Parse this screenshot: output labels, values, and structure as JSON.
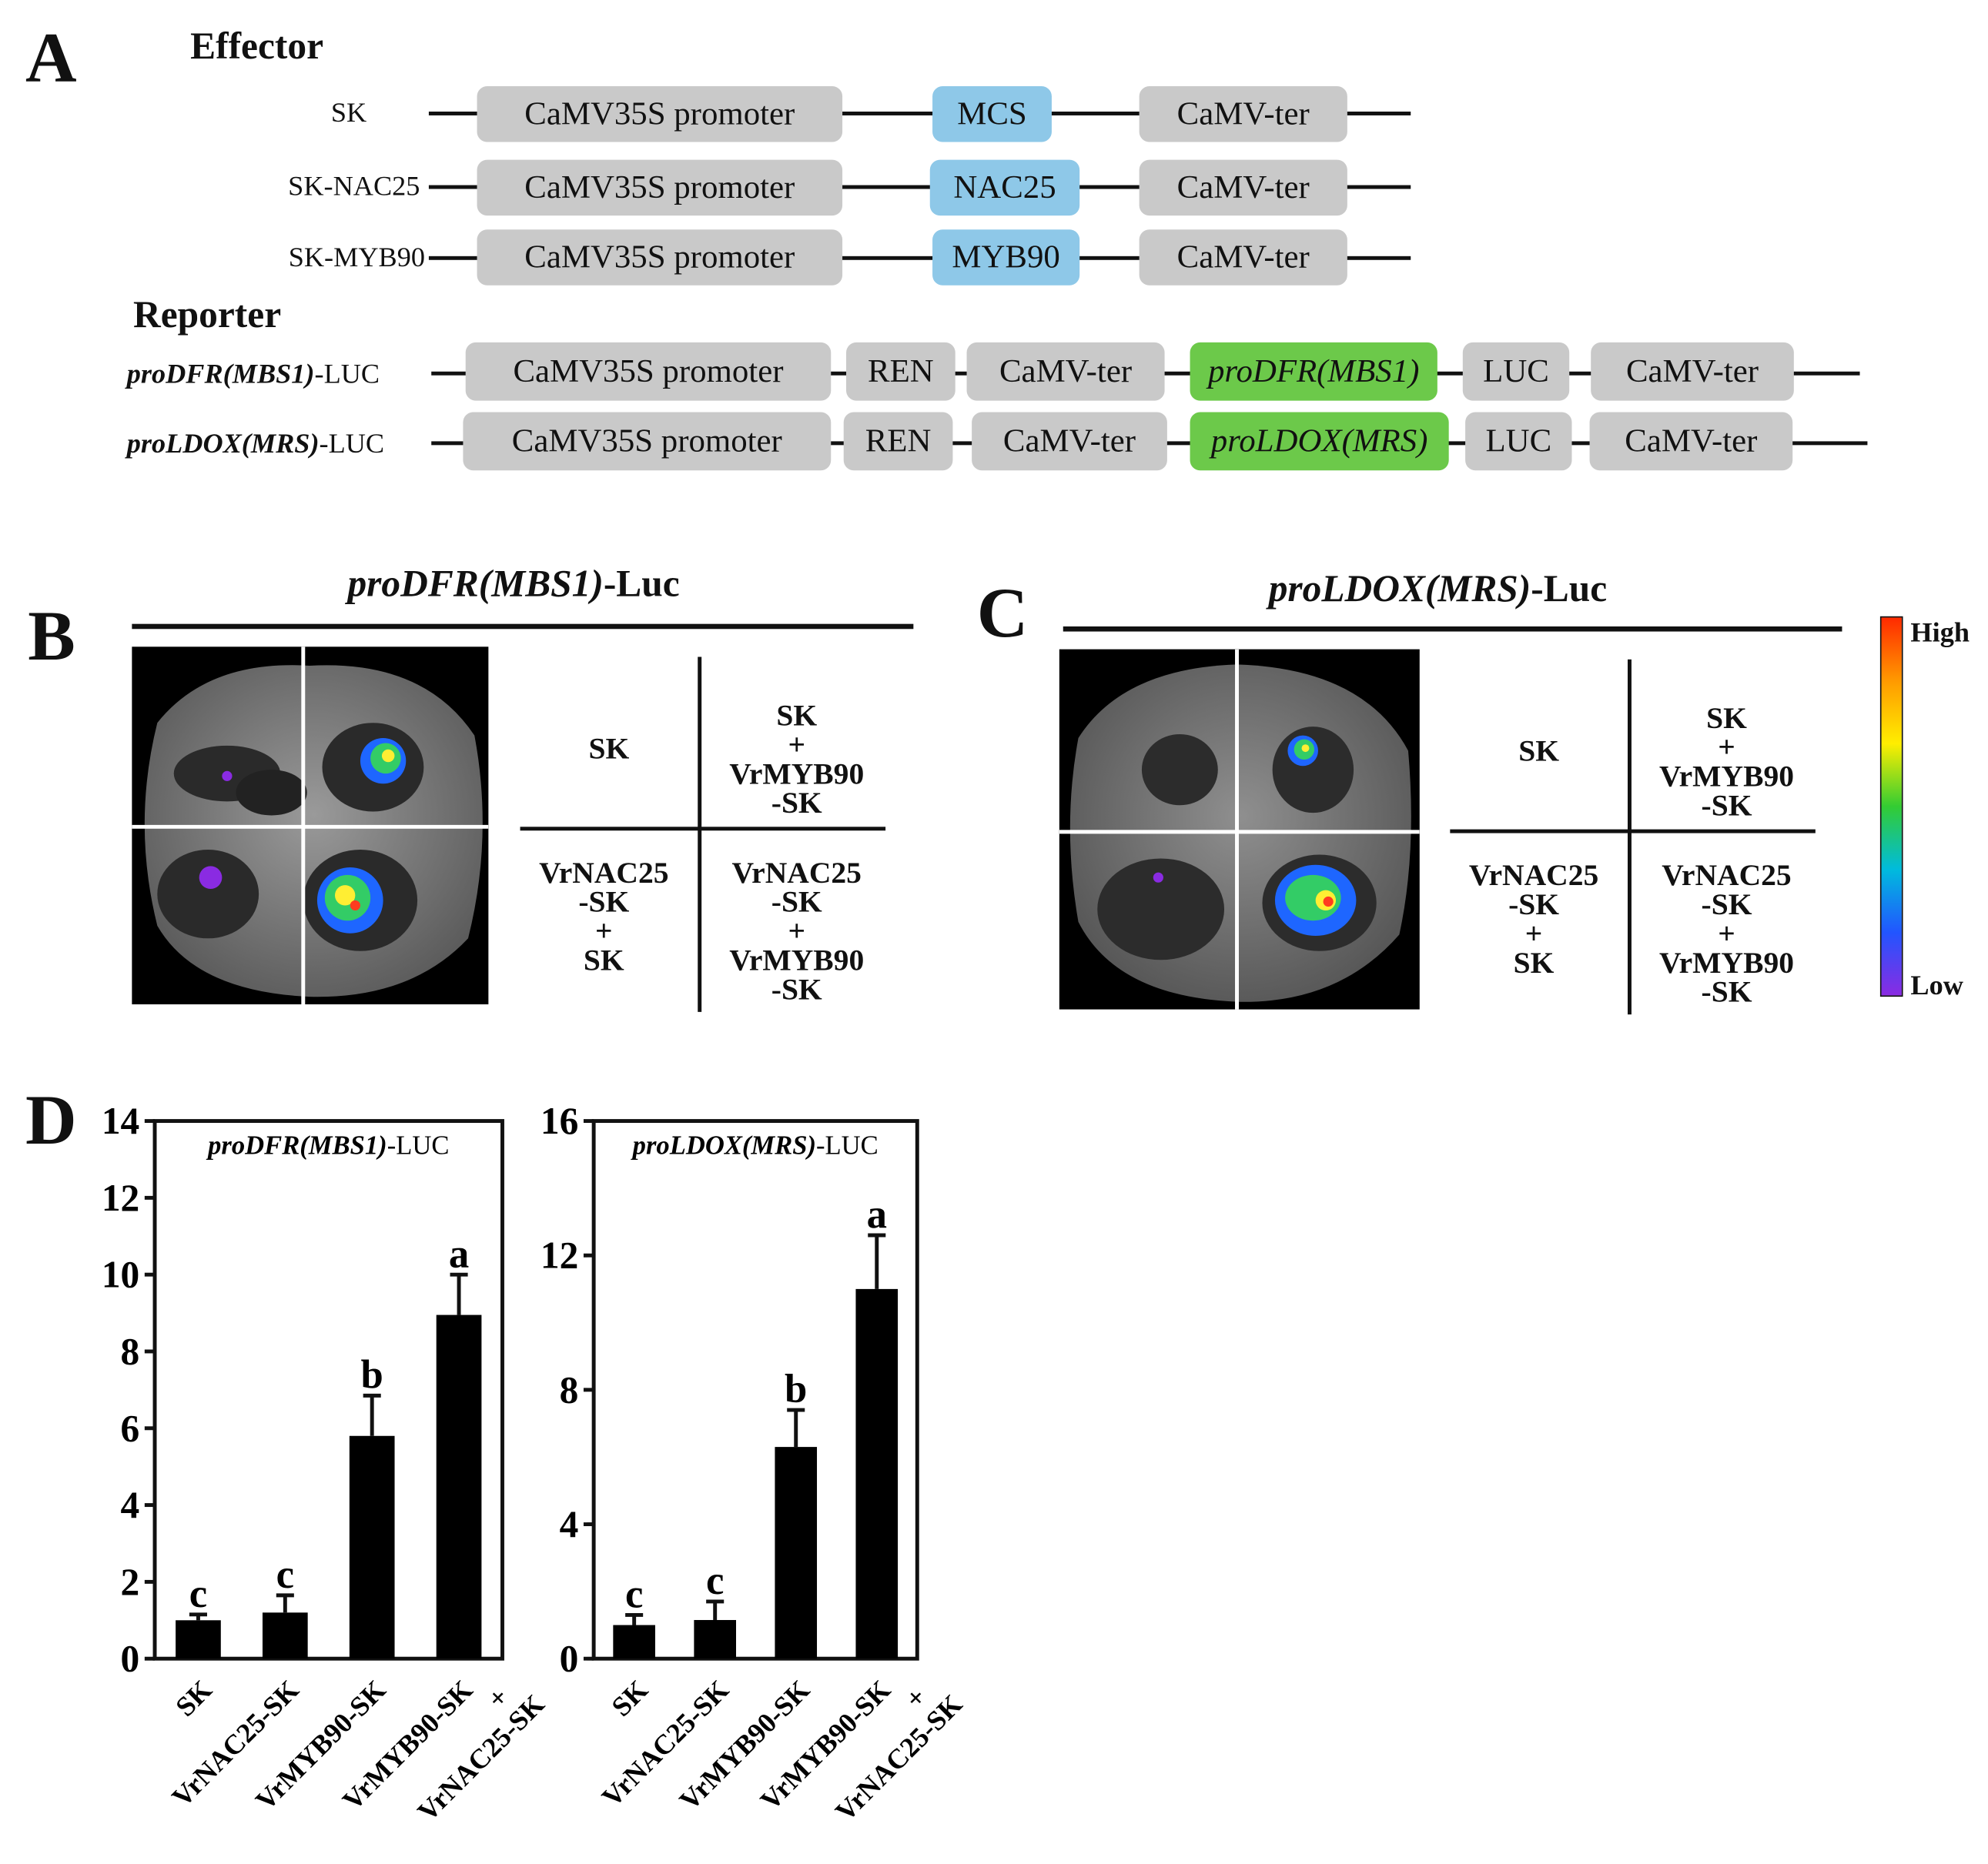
{
  "panelA": {
    "letter": "A",
    "effector_title": "Effector",
    "reporter_title": "Reporter",
    "effectors": [
      {
        "name": "SK",
        "promoter": "CaMV35S promoter",
        "insert": "MCS",
        "terminator": "CaMV-ter"
      },
      {
        "name": "SK-NAC25",
        "promoter": "CaMV35S promoter",
        "insert": "NAC25",
        "terminator": "CaMV-ter"
      },
      {
        "name": "SK-MYB90",
        "promoter": "CaMV35S promoter",
        "insert": "MYB90",
        "terminator": "CaMV-ter"
      }
    ],
    "reporters": [
      {
        "name_italic": "proDFR(MBS1)",
        "name_suffix": "-LUC",
        "promoter": "CaMV35S promoter",
        "ren": "REN",
        "ter1": "CaMV-ter",
        "pro": "proDFR(MBS1)",
        "luc": "LUC",
        "ter2": "CaMV-ter"
      },
      {
        "name_italic": "proLDOX(MRS)",
        "name_suffix": "-LUC",
        "promoter": "CaMV35S promoter",
        "ren": "REN",
        "ter1": "CaMV-ter",
        "pro": "proLDOX(MRS)",
        "luc": "LUC",
        "ter2": "CaMV-ter"
      }
    ]
  },
  "panelB": {
    "letter": "B",
    "title_italic": "proDFR(MBS1)",
    "title_suffix": "-Luc",
    "quadrants": {
      "top_left": [
        "SK"
      ],
      "top_right": [
        "SK",
        "+",
        "VrMYB90",
        "-SK"
      ],
      "bottom_left": [
        "VrNAC25",
        "-SK",
        "+",
        "SK"
      ],
      "bottom_right": [
        "VrNAC25",
        "-SK",
        "+",
        "VrMYB90",
        "-SK"
      ]
    }
  },
  "panelC": {
    "letter": "C",
    "title_italic": "proLDOX(MRS)",
    "title_suffix": "-Luc",
    "quadrants": {
      "top_left": [
        "SK"
      ],
      "top_right": [
        "SK",
        "+",
        "VrMYB90",
        "-SK"
      ],
      "bottom_left": [
        "VrNAC25",
        "-SK",
        "+",
        "SK"
      ],
      "bottom_right": [
        "VrNAC25",
        "-SK",
        "+",
        "VrMYB90",
        "-SK"
      ]
    }
  },
  "colorbar": {
    "high": "High",
    "low": "Low"
  },
  "panelD": {
    "letter": "D"
  },
  "chart_data": [
    {
      "type": "bar",
      "title_italic": "proDFR(MBS1)",
      "title_suffix": "-LUC",
      "categories": [
        "SK",
        "VrNAC25-SK",
        "VrMYB90-SK",
        "VrMYB90-SK\n+\nVrNAC25-SK"
      ],
      "values": [
        1.0,
        1.2,
        5.8,
        8.95
      ],
      "errors": [
        0.15,
        0.45,
        1.05,
        1.05
      ],
      "significance": [
        "c",
        "c",
        "b",
        "a"
      ],
      "ylim": [
        0,
        14
      ],
      "yticks": [
        0,
        2,
        4,
        6,
        8,
        10,
        12,
        14
      ],
      "color": "#000000"
    },
    {
      "type": "bar",
      "title_italic": "proLDOX(MRS)",
      "title_suffix": "-LUC",
      "categories": [
        "SK",
        "VrNAC25-SK",
        "VrMYB90-SK",
        "VrMYB90-SK\n+\nVrNAC25-SK"
      ],
      "values": [
        1.0,
        1.15,
        6.3,
        11.0
      ],
      "errors": [
        0.3,
        0.55,
        1.1,
        1.6
      ],
      "significance": [
        "c",
        "c",
        "b",
        "a"
      ],
      "ylim": [
        0,
        16
      ],
      "yticks": [
        0,
        4,
        8,
        12,
        16
      ],
      "color": "#000000"
    }
  ]
}
